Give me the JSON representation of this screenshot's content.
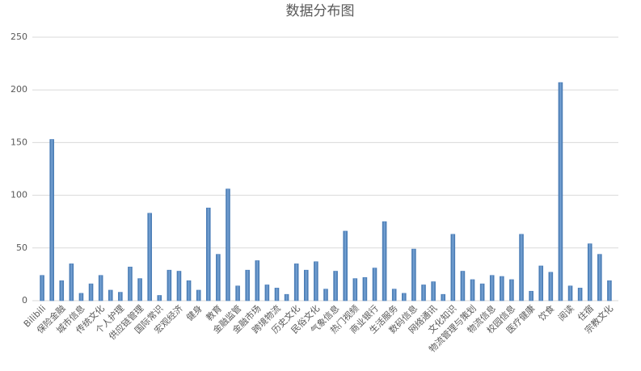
{
  "chart_data": {
    "type": "bar",
    "title": "数据分布图",
    "categories": [
      "Bilibili",
      null,
      "保险金融",
      null,
      "城市信息",
      null,
      "传统文化",
      null,
      "个人护理",
      null,
      "供应链管理",
      null,
      "国际常识",
      null,
      "宏观经济",
      null,
      "健身",
      null,
      "教育",
      null,
      "金融监管",
      null,
      "金融市场",
      null,
      "跨境物流",
      null,
      "历史文化",
      null,
      "民俗文化",
      null,
      "气象信息",
      null,
      "热门视频",
      null,
      "商业银行",
      null,
      "生活服务",
      null,
      "数码信息",
      null,
      "网络通讯",
      null,
      "文化知识",
      null,
      "物流管理与策划",
      null,
      "物流信息",
      null,
      "校园信息",
      null,
      "医疗健康",
      null,
      "饮食",
      null,
      "阅读",
      null,
      "住宿",
      null,
      "宗教文化"
    ],
    "values": [
      24,
      153,
      19,
      35,
      7,
      16,
      24,
      10,
      8,
      32,
      21,
      83,
      5,
      29,
      28,
      19,
      10,
      88,
      44,
      106,
      14,
      29,
      38,
      15,
      12,
      6,
      35,
      29,
      37,
      11,
      28,
      66,
      21,
      22,
      31,
      75,
      11,
      7,
      49,
      15,
      18,
      6,
      63,
      28,
      20,
      16,
      24,
      23,
      20,
      63,
      9,
      33,
      27,
      207,
      14,
      12,
      54,
      44,
      19
    ],
    "color": "#4f81bd",
    "ylim": [
      0,
      250
    ],
    "yticks": [
      0,
      50,
      100,
      150,
      200,
      250
    ],
    "grid": true
  }
}
